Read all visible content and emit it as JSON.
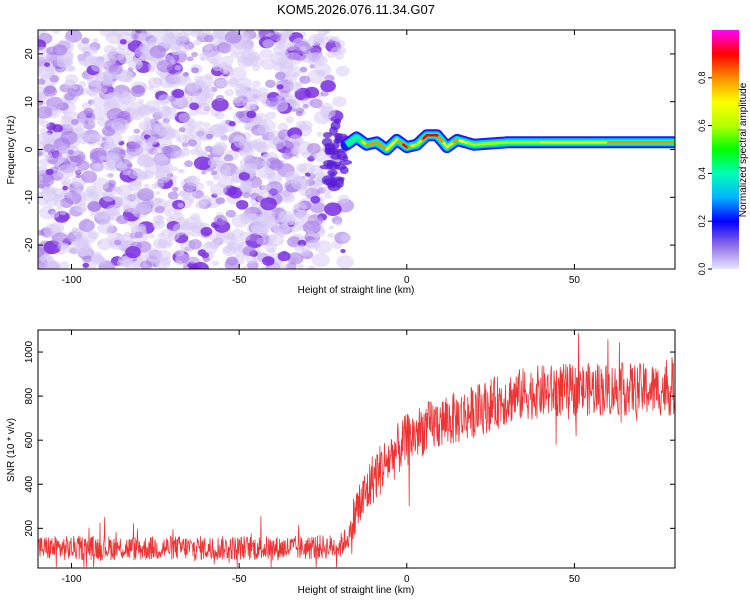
{
  "figure": {
    "title": "KOM5.2026.076.11.34.G07"
  },
  "chart_data": [
    {
      "id": "spectrogram",
      "type": "heatmap",
      "xlabel": "Height of straight line (km)",
      "ylabel": "Frequency (Hz)",
      "xlim": [
        -110,
        80
      ],
      "ylim": [
        -25,
        25
      ],
      "xticks": [
        -100,
        -50,
        0,
        50
      ],
      "yticks": [
        -20,
        -10,
        0,
        10,
        20
      ],
      "colorbar": {
        "label": "Normalized spectral amplitude",
        "range": [
          0,
          1
        ],
        "ticks": [
          0.0,
          0.2,
          0.4,
          0.6,
          0.8
        ],
        "colormap": [
          "#e6e6ff",
          "#8e6be6",
          "#0000ff",
          "#00b4ff",
          "#00ffb4",
          "#00ff00",
          "#b4ff00",
          "#ffff00",
          "#ff8c00",
          "#ff0000",
          "#ff00ff"
        ]
      },
      "noise_region_x": [
        -110,
        -18
      ],
      "ridge": {
        "x": [
          -18,
          -15,
          -12,
          -9,
          -6,
          -3,
          0,
          3,
          6,
          9,
          12,
          15,
          20,
          30,
          40,
          50,
          60,
          70,
          80
        ],
        "frequency": [
          1.0,
          2.5,
          1.0,
          1.5,
          0.0,
          2.0,
          0.5,
          1.0,
          3.0,
          3.0,
          0.5,
          2.0,
          1.0,
          1.5,
          1.5,
          1.5,
          1.5,
          1.5,
          1.5
        ],
        "amplitude": [
          0.25,
          0.4,
          0.75,
          0.8,
          0.75,
          0.7,
          0.9,
          0.6,
          0.95,
          0.9,
          0.65,
          0.8,
          0.55,
          0.6,
          0.65,
          0.7,
          0.75,
          0.75,
          0.75
        ]
      }
    },
    {
      "id": "snr",
      "type": "line",
      "xlabel": "Height of straight line (km)",
      "ylabel": "SNR (10 * v/v)",
      "xlim": [
        -110,
        80
      ],
      "ylim": [
        20,
        1100
      ],
      "xticks": [
        -100,
        -50,
        0,
        50
      ],
      "yticks": [
        200,
        400,
        600,
        800,
        1000
      ],
      "color": "#ee3333",
      "series": [
        {
          "name": "SNR",
          "x": [
            -110,
            -100,
            -90,
            -80,
            -70,
            -60,
            -50,
            -40,
            -30,
            -20,
            -17,
            -15,
            -12,
            -10,
            -5,
            0,
            5,
            10,
            15,
            20,
            25,
            30,
            35,
            40,
            50,
            60,
            70,
            80
          ],
          "values": [
            110,
            110,
            112,
            108,
            112,
            110,
            112,
            110,
            112,
            118,
            170,
            280,
            360,
            430,
            520,
            600,
            650,
            680,
            700,
            730,
            760,
            790,
            810,
            820,
            830,
            830,
            830,
            830
          ]
        }
      ]
    }
  ]
}
